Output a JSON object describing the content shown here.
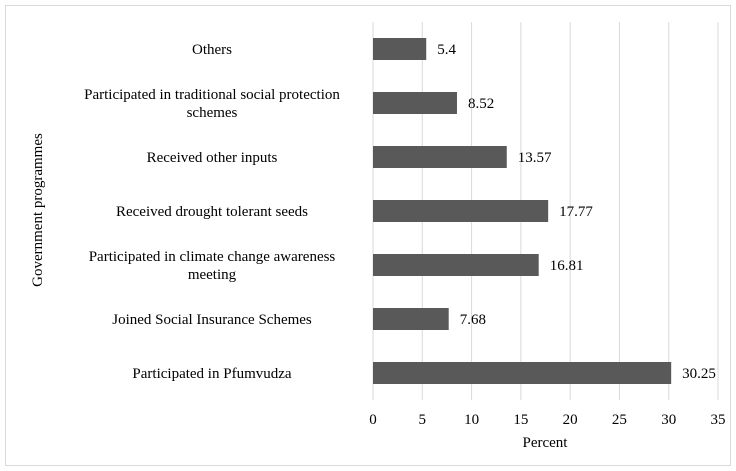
{
  "chart_data": {
    "type": "bar",
    "orientation": "horizontal",
    "categories": [
      "Others",
      "Participated in traditional social protection schemes",
      "Received other inputs",
      "Received drought tolerant seeds",
      "Participated in climate change awareness meeting",
      "Joined Social Insurance Schemes",
      "Participated in Pfumvudza"
    ],
    "category_lines": [
      [
        "Others"
      ],
      [
        "Participated in traditional social protection",
        "schemes"
      ],
      [
        "Received other inputs"
      ],
      [
        "Received drought tolerant seeds"
      ],
      [
        "Participated in climate change awareness",
        "meeting"
      ],
      [
        "Joined Social Insurance Schemes"
      ],
      [
        "Participated in Pfumvudza"
      ]
    ],
    "values": [
      5.4,
      8.52,
      13.57,
      17.77,
      16.81,
      7.68,
      30.25
    ],
    "data_labels": [
      "5.4",
      "8.52",
      "13.57",
      "17.77",
      "16.81",
      "7.68",
      "30.25"
    ],
    "xlabel": "Percent",
    "ylabel": "Government programmes",
    "xlim": [
      0,
      35
    ],
    "x_ticks": [
      0,
      5,
      10,
      15,
      20,
      25,
      30,
      35
    ],
    "grid": "vertical",
    "legend": "none",
    "bar_color": "#595959",
    "grid_color": "#d9d9d9"
  }
}
